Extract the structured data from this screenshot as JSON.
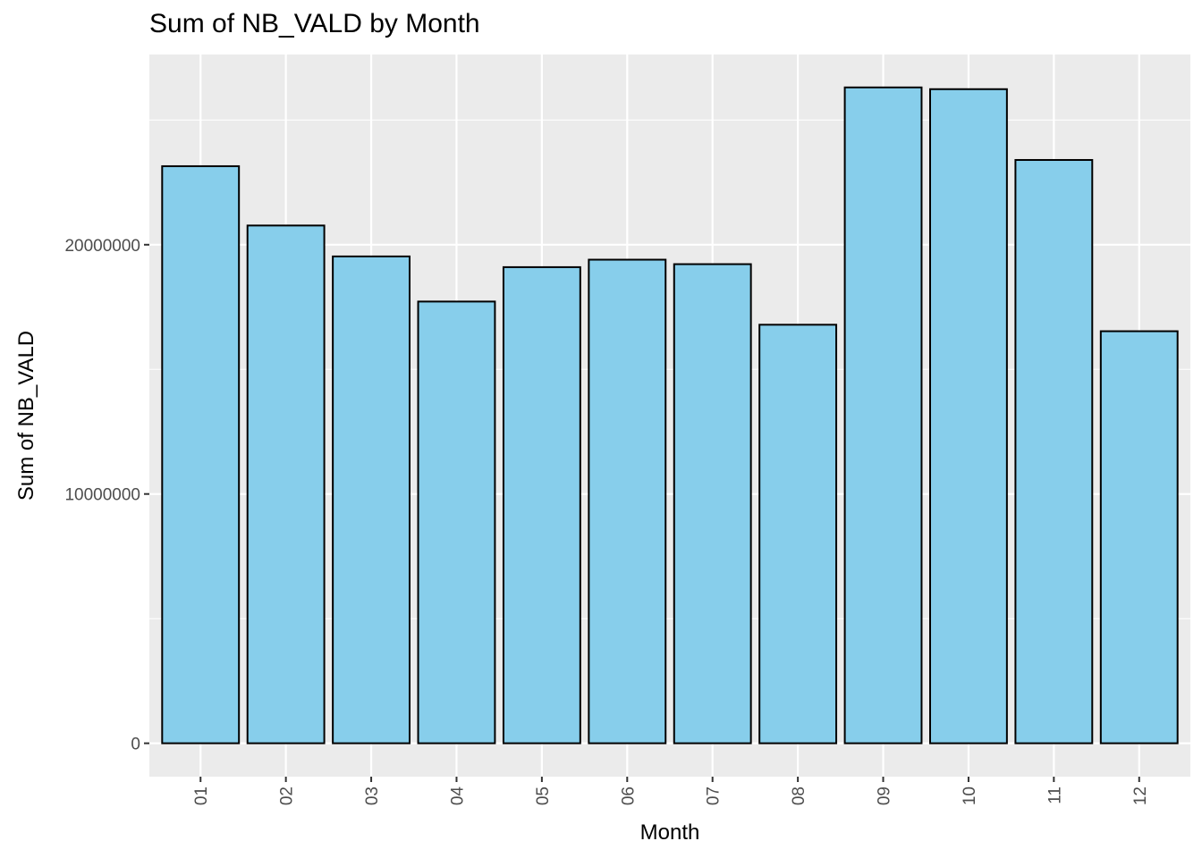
{
  "chart_data": {
    "type": "bar",
    "title": "Sum of NB_VALD by Month",
    "xlabel": "Month",
    "ylabel": "Sum of NB_VALD",
    "categories": [
      "01",
      "02",
      "03",
      "04",
      "05",
      "06",
      "07",
      "08",
      "09",
      "10",
      "11",
      "12"
    ],
    "values": [
      23150000,
      20770000,
      19530000,
      17720000,
      19100000,
      19400000,
      19220000,
      16790000,
      26310000,
      26240000,
      23400000,
      16530000
    ],
    "yticks": [
      0,
      10000000,
      20000000
    ],
    "ytick_labels": [
      "0",
      "10000000",
      "20000000"
    ],
    "ylim": [
      -1340000,
      27630000
    ],
    "grid": true,
    "legend": "none",
    "colors": {
      "bar_fill": "#87CEEB",
      "bar_stroke": "#000000",
      "panel_bg": "#EBEBEB",
      "grid": "#FFFFFF"
    }
  }
}
